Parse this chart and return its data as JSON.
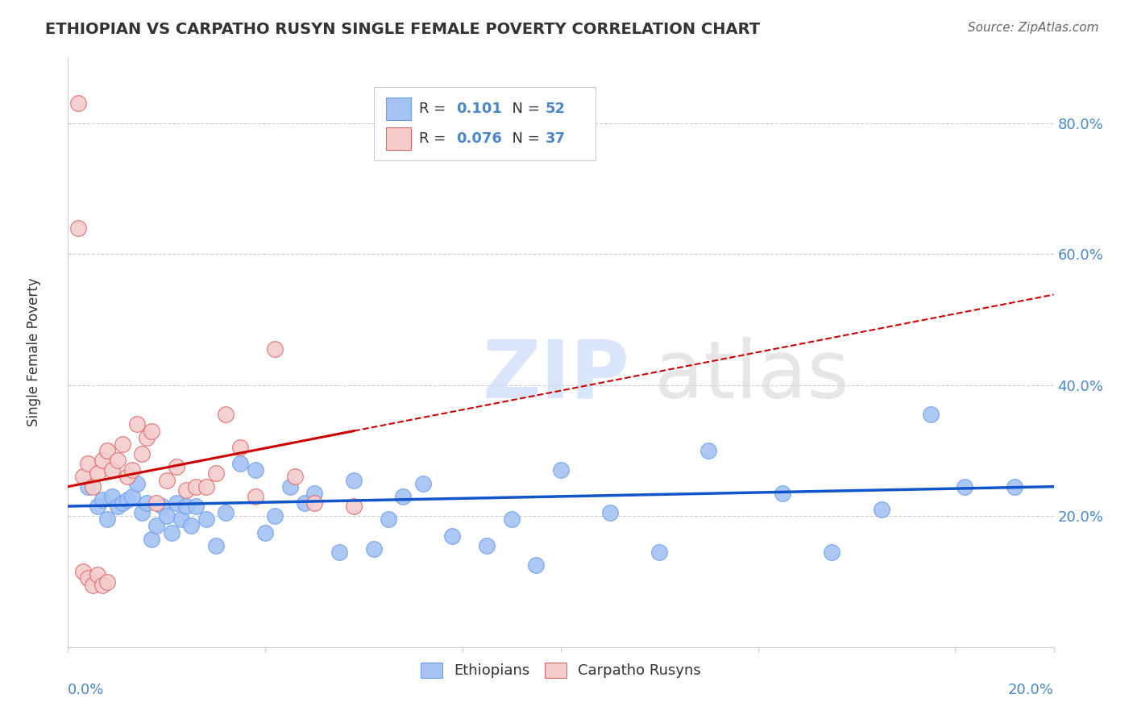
{
  "title": "ETHIOPIAN VS CARPATHO RUSYN SINGLE FEMALE POVERTY CORRELATION CHART",
  "source": "Source: ZipAtlas.com",
  "ylabel": "Single Female Poverty",
  "xlim": [
    0.0,
    0.2
  ],
  "ylim": [
    0.0,
    0.9
  ],
  "ytick_labels": [
    "20.0%",
    "40.0%",
    "60.0%",
    "80.0%"
  ],
  "ytick_values": [
    0.2,
    0.4,
    0.6,
    0.8
  ],
  "r_ethiopian": "0.101",
  "n_ethiopian": "52",
  "r_carpatho": "0.076",
  "n_carpatho": "37",
  "ethiopian_color": "#a4c2f4",
  "carpatho_color": "#f4cccc",
  "ethiopian_edge": "#6d9eeb",
  "carpatho_edge": "#e06666",
  "trend_ethiopian_color": "#1155cc",
  "trend_carpatho_color": "#cc0000",
  "ethiopians_x": [
    0.004,
    0.006,
    0.007,
    0.008,
    0.009,
    0.01,
    0.011,
    0.012,
    0.013,
    0.014,
    0.015,
    0.016,
    0.017,
    0.018,
    0.019,
    0.02,
    0.021,
    0.022,
    0.023,
    0.024,
    0.025,
    0.026,
    0.028,
    0.03,
    0.032,
    0.035,
    0.038,
    0.04,
    0.042,
    0.045,
    0.048,
    0.05,
    0.055,
    0.058,
    0.062,
    0.065,
    0.068,
    0.072,
    0.078,
    0.085,
    0.09,
    0.095,
    0.1,
    0.11,
    0.12,
    0.13,
    0.145,
    0.155,
    0.165,
    0.175,
    0.182,
    0.192
  ],
  "ethiopians_y": [
    0.245,
    0.215,
    0.225,
    0.195,
    0.23,
    0.215,
    0.22,
    0.225,
    0.23,
    0.25,
    0.205,
    0.22,
    0.165,
    0.185,
    0.215,
    0.2,
    0.175,
    0.22,
    0.195,
    0.215,
    0.185,
    0.215,
    0.195,
    0.155,
    0.205,
    0.28,
    0.27,
    0.175,
    0.2,
    0.245,
    0.22,
    0.235,
    0.145,
    0.255,
    0.15,
    0.195,
    0.23,
    0.25,
    0.17,
    0.155,
    0.195,
    0.125,
    0.27,
    0.205,
    0.145,
    0.3,
    0.235,
    0.145,
    0.21,
    0.355,
    0.245,
    0.245
  ],
  "carpatho_x": [
    0.002,
    0.003,
    0.004,
    0.005,
    0.006,
    0.007,
    0.008,
    0.009,
    0.01,
    0.011,
    0.012,
    0.013,
    0.014,
    0.015,
    0.016,
    0.017,
    0.018,
    0.02,
    0.022,
    0.024,
    0.026,
    0.028,
    0.03,
    0.032,
    0.035,
    0.038,
    0.042,
    0.046,
    0.05,
    0.058,
    0.002,
    0.003,
    0.004,
    0.005,
    0.006,
    0.007,
    0.008
  ],
  "carpatho_y": [
    0.83,
    0.26,
    0.28,
    0.245,
    0.265,
    0.285,
    0.3,
    0.27,
    0.285,
    0.31,
    0.26,
    0.27,
    0.34,
    0.295,
    0.32,
    0.33,
    0.22,
    0.255,
    0.275,
    0.24,
    0.245,
    0.245,
    0.265,
    0.355,
    0.305,
    0.23,
    0.455,
    0.26,
    0.22,
    0.215,
    0.64,
    0.115,
    0.105,
    0.095,
    0.11,
    0.095,
    0.1
  ],
  "trend_eth_x0": 0.0,
  "trend_eth_x1": 0.2,
  "trend_eth_y0": 0.215,
  "trend_eth_y1": 0.245,
  "trend_car_x0": 0.0,
  "trend_car_x1": 0.058,
  "trend_car_y0": 0.245,
  "trend_car_y1": 0.33
}
